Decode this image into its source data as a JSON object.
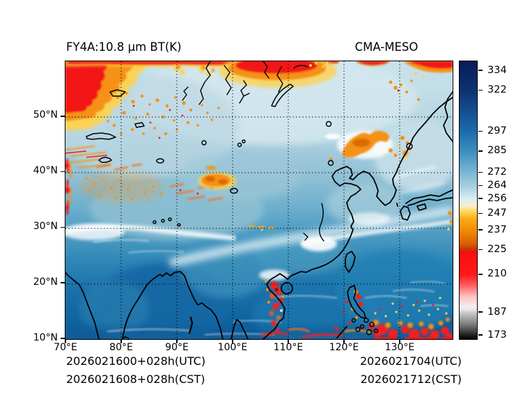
{
  "figure": {
    "title_left": "FY4A:10.8 μm BT(K)",
    "title_right": "CMA-MESO"
  },
  "map": {
    "x_axis": {
      "ticks": [
        "70°E",
        "80°E",
        "90°E",
        "100°E",
        "110°E",
        "120°E",
        "130°E"
      ]
    },
    "y_axis": {
      "ticks": [
        "50°N",
        "40°N",
        "30°N",
        "20°N",
        "10°N"
      ]
    }
  },
  "colorbar_labels": [
    "334",
    "322",
    "297",
    "285",
    "272",
    "264",
    "256",
    "247",
    "237",
    "225",
    "210",
    "187",
    "173"
  ],
  "footer": {
    "left_utc": "2026021600+028h(UTC)",
    "left_cst": "2026021608+028h(CST)",
    "right_utc": "2026021704(UTC)",
    "right_cst": "2026021712(CST)"
  },
  "chart_data": {
    "type": "heatmap",
    "title": "FY4A:10.8 μm BT(K)",
    "model": "CMA-MESO",
    "variable": "FY4A satellite 10.8 micron brightness temperature (K), simulated by CMA-MESO",
    "x": {
      "label": "longitude",
      "unit": "°E",
      "range": [
        70,
        139.5
      ],
      "ticks": [
        70,
        80,
        90,
        100,
        110,
        120,
        130
      ]
    },
    "y": {
      "label": "latitude",
      "unit": "°N",
      "range": [
        10,
        60
      ],
      "ticks": [
        50,
        40,
        30,
        20,
        10
      ]
    },
    "init_time_utc": "2026021600",
    "forecast_hour": 28,
    "init_time_cst": "2026021608",
    "valid_time_utc": "2026021704",
    "valid_time_cst": "2026021712",
    "grid": "dotted black graticule every 10°",
    "colorbar": {
      "unit": "K",
      "range": [
        171,
        340
      ],
      "ticks": [
        334,
        322,
        297,
        285,
        272,
        264,
        256,
        247,
        237,
        225,
        210,
        187,
        173
      ],
      "palette_stops": [
        [
          340,
          "#081d58"
        ],
        [
          322,
          "#0e3172"
        ],
        [
          297,
          "#1d6cab"
        ],
        [
          285,
          "#3c8fbf"
        ],
        [
          272,
          "#7db8d3"
        ],
        [
          264,
          "#a5cfdf"
        ],
        [
          256,
          "#ddeef3"
        ],
        [
          252,
          "#f7eecb"
        ],
        [
          248,
          "#ffd24e"
        ],
        [
          244,
          "#fbab18"
        ],
        [
          237,
          "#f28a00"
        ],
        [
          229,
          "#d95f00"
        ],
        [
          226,
          "#c93a08"
        ],
        [
          224,
          "#f61010"
        ],
        [
          210,
          "#ff1a1a"
        ],
        [
          204,
          "#ff5a5a"
        ],
        [
          197,
          "#ffc0c0"
        ],
        [
          191,
          "#f5eeee"
        ],
        [
          189,
          "#e8e8e8"
        ],
        [
          187,
          "#c9c9c9"
        ],
        [
          180,
          "#7c7c7c"
        ],
        [
          173,
          "#191919"
        ],
        [
          171,
          "#000000"
        ]
      ]
    },
    "features": [
      "deep cold cloud tops (BT < 230 K, red) filling the northwest corner and along the northern map edge near 105-118°E",
      "red cloud band re-entering along the top edge near 122°E and the northeast corner",
      "orange mid/high cloud shield (BT 225-250 K) near 120-127°E, 42-46°N over northeast China",
      "compact orange cloud patch near 95-100°E, 38-40°N",
      "scattered orange cloud streaks over 72-100°E, 36-55°N (Central Asia / Altai)",
      "red convective streaks hugging the 70°E western boundary between 28-43°N",
      "convective cluster (red) over Vietnam coast and Gulf of Tonkin, 105-110°E, 10-23°N",
      "line of tropical convection (red/orange) along 10-14°N from 105°E to 140°E, including over Luzon",
      "warm clear ocean (BT 285-300 K, dark blue) over Bay of Bengal, South China Sea and Philippine Sea",
      "cold clear land (BT 250-270 K, pale blue) over Tibetan Plateau, Mongolia and Siberia",
      "thin white cirrus band arcing from south China (~25°N) northeastward past Japan",
      "black coastlines and lake outlines (India, Indochina, China coast, Korea, Japan, Taiwan, Hainan, Luzon, Baikal, Balkhash)"
    ]
  }
}
